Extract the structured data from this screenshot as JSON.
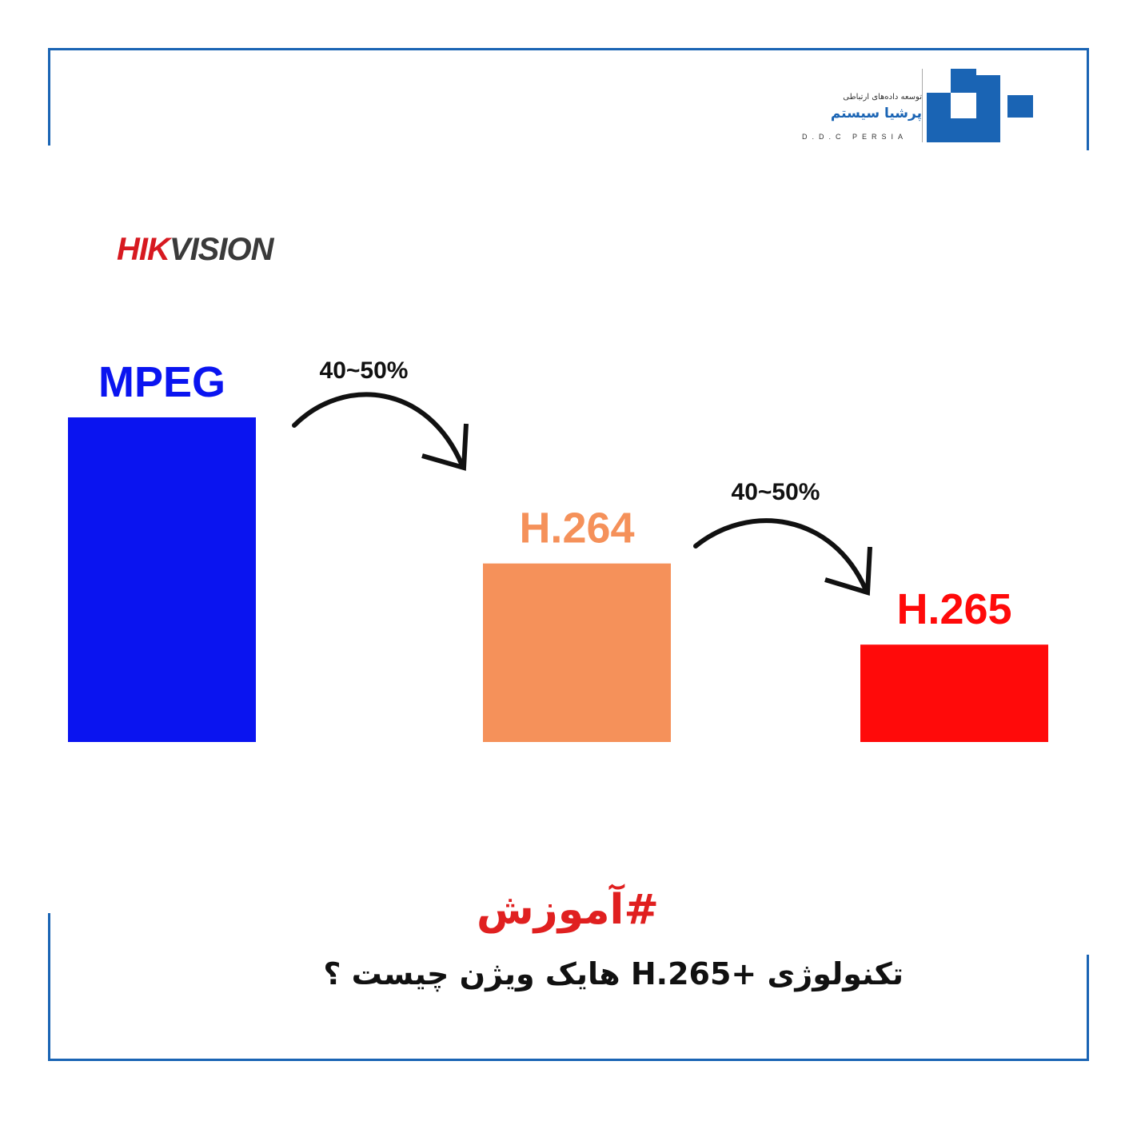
{
  "brand": {
    "company_line1": "توسعه داده‌های ارتباطی",
    "company_line2": "پرشیا سیستم",
    "company_en": "D.D.C PERSIA",
    "accent": "#1a64b4"
  },
  "hikvision": {
    "part1": "HIK",
    "part2": "VISION"
  },
  "chart_data": {
    "type": "bar",
    "categories": [
      "MPEG",
      "H.264",
      "H.265"
    ],
    "values": [
      100,
      55,
      30
    ],
    "colors": [
      "#0a14f0",
      "#f5915a",
      "#ff0a0a"
    ],
    "ylim": [
      0,
      100
    ],
    "annotations": [
      "40~50%",
      "40~50%"
    ],
    "grid": false,
    "title": "",
    "xlabel": "",
    "ylabel": ""
  },
  "footer": {
    "tag": "#آموزش",
    "caption": "تکنولوژی +H.265  هایک ویژن چیست ؟"
  }
}
